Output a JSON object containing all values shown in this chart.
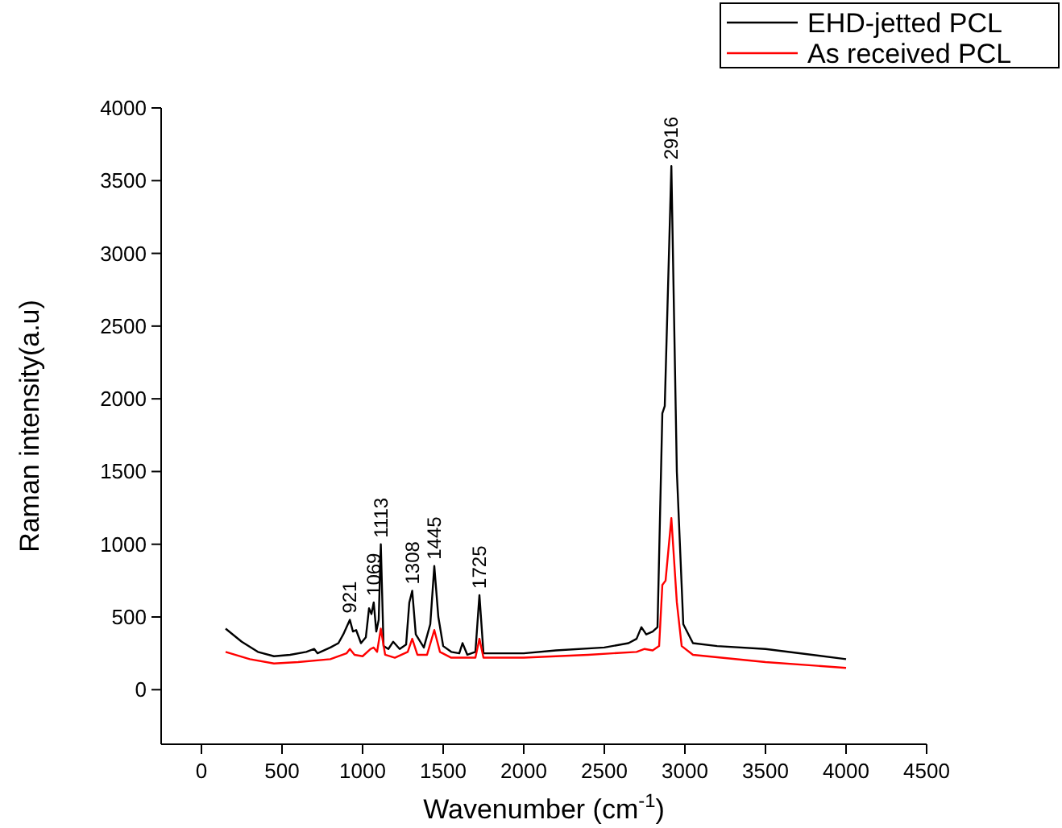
{
  "chart_data": {
    "type": "line",
    "xlabel": "Wavenumber (cm$^{-1}$)",
    "ylabel": "Raman intensity(a.u)",
    "xlim": [
      -250,
      4500
    ],
    "xticks": [
      0,
      500,
      1000,
      1500,
      2000,
      2500,
      3000,
      3500,
      4000,
      4500
    ],
    "ylim": [
      -375,
      4000
    ],
    "yticks": [
      0,
      500,
      1000,
      1500,
      2000,
      2500,
      3000,
      3500,
      4000
    ],
    "legend": "top right",
    "line_style": "solid",
    "series": [
      {
        "name": "EHD-jetted PCL",
        "color": "#000000",
        "x": [
          150,
          250,
          350,
          450,
          550,
          650,
          700,
          720,
          800,
          850,
          880,
          921,
          940,
          960,
          990,
          1020,
          1040,
          1055,
          1069,
          1085,
          1100,
          1113,
          1130,
          1160,
          1190,
          1230,
          1270,
          1290,
          1308,
          1330,
          1380,
          1420,
          1445,
          1470,
          1500,
          1550,
          1600,
          1620,
          1650,
          1700,
          1725,
          1750,
          2000,
          2200,
          2500,
          2650,
          2700,
          2730,
          2760,
          2800,
          2830,
          2860,
          2875,
          2916,
          2950,
          2990,
          3050,
          3200,
          3500,
          4000
        ],
        "values": [
          420,
          330,
          260,
          230,
          240,
          260,
          280,
          250,
          290,
          320,
          380,
          480,
          400,
          410,
          320,
          360,
          560,
          520,
          600,
          400,
          480,
          1000,
          300,
          280,
          330,
          280,
          310,
          600,
          680,
          380,
          290,
          450,
          850,
          500,
          300,
          260,
          250,
          320,
          240,
          260,
          650,
          250,
          250,
          270,
          290,
          320,
          350,
          430,
          380,
          400,
          430,
          1900,
          1950,
          3600,
          1500,
          450,
          320,
          300,
          280,
          210
        ]
      },
      {
        "name": "As received PCL",
        "color": "#ff0000",
        "x": [
          150,
          300,
          450,
          600,
          800,
          900,
          921,
          950,
          1000,
          1050,
          1069,
          1090,
          1113,
          1140,
          1200,
          1280,
          1308,
          1340,
          1400,
          1445,
          1480,
          1550,
          1700,
          1725,
          1750,
          2000,
          2400,
          2700,
          2750,
          2800,
          2840,
          2860,
          2880,
          2916,
          2950,
          2980,
          3050,
          3500,
          4000
        ],
        "values": [
          260,
          210,
          180,
          190,
          210,
          250,
          280,
          240,
          230,
          280,
          290,
          260,
          420,
          240,
          220,
          260,
          350,
          240,
          240,
          410,
          260,
          220,
          220,
          350,
          220,
          220,
          240,
          260,
          280,
          270,
          300,
          720,
          750,
          1180,
          600,
          300,
          240,
          190,
          150
        ]
      }
    ],
    "annotations": [
      {
        "text": "921",
        "x": 921,
        "y": 480
      },
      {
        "text": "1069",
        "x": 1069,
        "y": 600
      },
      {
        "text": "1113",
        "x": 1113,
        "y": 1000
      },
      {
        "text": "1308",
        "x": 1308,
        "y": 680
      },
      {
        "text": "1445",
        "x": 1445,
        "y": 850
      },
      {
        "text": "1725",
        "x": 1725,
        "y": 650
      },
      {
        "text": "2916",
        "x": 2916,
        "y": 3600
      }
    ]
  }
}
